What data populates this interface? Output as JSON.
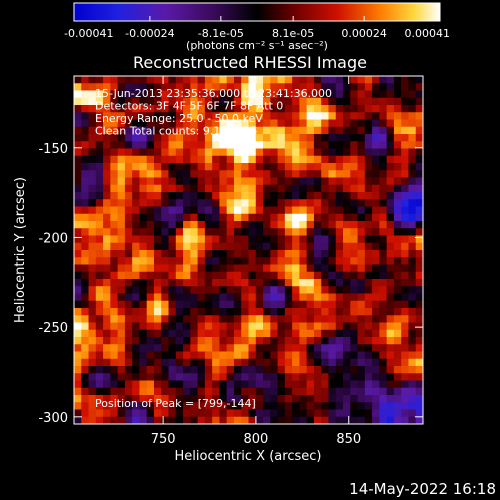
{
  "colorbar": {
    "tick_labels": [
      "-0.00041",
      "-0.00024",
      "-8.1e-05",
      "8.1e-05",
      "0.00024",
      "0.00041"
    ],
    "tick_values": [
      -0.00041,
      -0.00024,
      -8.1e-05,
      8.1e-05,
      0.00024,
      0.00041
    ],
    "unit_label": "(photons cm⁻² s⁻¹ asec⁻²)",
    "range": [
      -0.00041,
      0.00041
    ]
  },
  "chart_data": {
    "type": "heatmap",
    "title": "Reconstructed RHESSI Image",
    "xlabel": "Heliocentric X (arcsec)",
    "ylabel": "Heliocentric Y (arcsec)",
    "xlim": [
      702,
      890
    ],
    "ylim": [
      -304,
      -110
    ],
    "x_ticks": [
      750,
      800,
      850
    ],
    "x_tick_labels": [
      "750",
      "800",
      "850"
    ],
    "y_ticks": [
      -150,
      -200,
      -250,
      -300
    ],
    "y_tick_labels": [
      "-150",
      "-200",
      "-250",
      "-300"
    ],
    "annotations": [
      "15-Jun-2013 23:35:36.000 to 23:41:36.000",
      "Detectors: 3F 4F 5F 6F 7F 8F Att 0",
      "Energy Range: 25.0 - 50.0 keV",
      "Clean     Total counts: 9.13e+05"
    ],
    "peak_label": "Position of Peak = [799,-144]",
    "peak": {
      "x": 799,
      "y": -144
    },
    "colormap": "blue-purple-red-orange-yellow-white"
  },
  "footer": {
    "timestamp": "14-May-2022 16:18"
  }
}
